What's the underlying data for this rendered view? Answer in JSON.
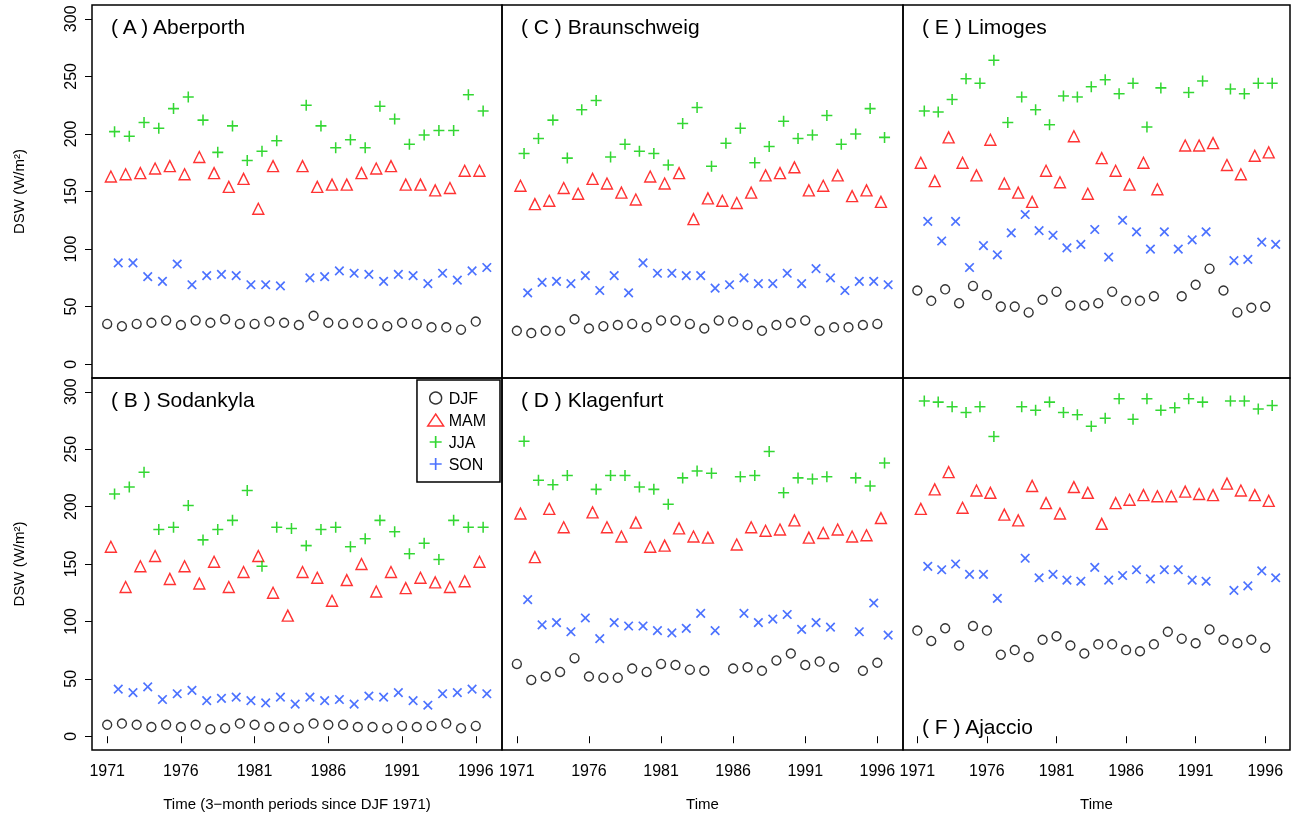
{
  "chart_data": [
    {
      "type": "scatter",
      "title": "( A ) Aberporth",
      "ylabel": "DSW (W/m²)",
      "xlim": [
        1969.97,
        1997.78
      ],
      "ylim": [
        -12,
        312
      ],
      "xticks": [
        1971,
        1976,
        1981,
        1986,
        1991,
        1996
      ],
      "yticks": [
        0,
        50,
        100,
        150,
        200,
        250,
        300
      ],
      "tick_labels": "y",
      "series": [
        {
          "color": "#000000",
          "marker": "circle",
          "x": [
            1971,
            1972,
            1973,
            1974,
            1975,
            1976,
            1977,
            1978,
            1979,
            1980,
            1981,
            1982,
            1983,
            1984,
            1985,
            1986,
            1987,
            1988,
            1989,
            1990,
            1991,
            1992,
            1993,
            1994,
            1995,
            1996
          ],
          "values": [
            35,
            33,
            35,
            36,
            38,
            34,
            38,
            36,
            39,
            35,
            35,
            37,
            36,
            34,
            42,
            36,
            35,
            36,
            35,
            33,
            36,
            35,
            32,
            32,
            30,
            37
          ]
        },
        {
          "color": "#ff0000",
          "marker": "triangle",
          "x": [
            1971.25,
            1972.25,
            1973.25,
            1974.25,
            1975.25,
            1976.25,
            1977.25,
            1978.25,
            1979.25,
            1980.25,
            1981.25,
            1982.25,
            1983.25,
            1984.25,
            1985.25,
            1986.25,
            1987.25,
            1988.25,
            1989.25,
            1990.25,
            1991.25,
            1992.25,
            1993.25,
            1994.25,
            1995.25,
            1996.25
          ],
          "values": [
            163,
            165,
            166,
            170,
            172,
            165,
            180,
            166,
            154,
            161,
            135,
            172,
            null,
            172,
            154,
            156,
            156,
            166,
            170,
            172,
            156,
            156,
            151,
            153,
            168,
            168
          ]
        },
        {
          "color": "#00cd00",
          "marker": "cross",
          "x": [
            1971.5,
            1972.5,
            1973.5,
            1974.5,
            1975.5,
            1976.5,
            1977.5,
            1978.5,
            1979.5,
            1980.5,
            1981.5,
            1982.5,
            1983.5,
            1984.5,
            1985.5,
            1986.5,
            1987.5,
            1988.5,
            1989.5,
            1990.5,
            1991.5,
            1992.5,
            1993.5,
            1994.5,
            1995.5,
            1996.5
          ],
          "values": [
            202,
            198,
            210,
            205,
            222,
            232,
            212,
            184,
            207,
            177,
            185,
            194,
            null,
            225,
            207,
            188,
            195,
            188,
            224,
            213,
            191,
            199,
            203,
            203,
            234,
            220
          ]
        },
        {
          "color": "#1f4fff",
          "x": [
            1971.75,
            1972.75,
            1973.75,
            1974.75,
            1975.75,
            1976.75,
            1977.75,
            1978.75,
            1979.75,
            1980.75,
            1981.75,
            1982.75,
            1983.75,
            1984.75,
            1985.75,
            1986.75,
            1987.75,
            1988.75,
            1989.75,
            1990.75,
            1991.75,
            1992.75,
            1993.75,
            1994.75,
            1995.75,
            1996.75
          ],
          "values": [
            88,
            88,
            76,
            72,
            87,
            69,
            77,
            78,
            77,
            69,
            69,
            68,
            null,
            75,
            76,
            81,
            79,
            78,
            72,
            78,
            77,
            70,
            79,
            73,
            81,
            84
          ]
        }
      ]
    },
    {
      "type": "scatter",
      "title": "( C ) Braunschweig",
      "xlim": [
        1969.97,
        1997.78
      ],
      "ylim": [
        -12,
        312
      ],
      "xticks": [
        1971,
        1976,
        1981,
        1986,
        1991,
        1996
      ],
      "yticks": [
        0,
        50,
        100,
        150,
        200,
        250,
        300
      ],
      "tick_labels": false,
      "series": [
        {
          "color": "#000000",
          "marker": "circle",
          "x": [
            1971,
            1972,
            1973,
            1974,
            1975,
            1976,
            1977,
            1978,
            1979,
            1980,
            1981,
            1982,
            1983,
            1984,
            1985,
            1986,
            1987,
            1988,
            1989,
            1990,
            1991,
            1992,
            1993,
            1994,
            1995,
            1996
          ],
          "values": [
            29,
            27,
            29,
            29,
            39,
            31,
            33,
            34,
            35,
            32,
            38,
            38,
            35,
            31,
            38,
            37,
            34,
            29,
            34,
            36,
            38,
            29,
            32,
            32,
            34,
            35
          ]
        },
        {
          "color": "#ff0000",
          "marker": "triangle",
          "x": [
            1971.25,
            1972.25,
            1973.25,
            1974.25,
            1975.25,
            1976.25,
            1977.25,
            1978.25,
            1979.25,
            1980.25,
            1981.25,
            1982.25,
            1983.25,
            1984.25,
            1985.25,
            1986.25,
            1987.25,
            1988.25,
            1989.25,
            1990.25,
            1991.25,
            1992.25,
            1993.25,
            1994.25,
            1995.25,
            1996.25
          ],
          "values": [
            155,
            139,
            142,
            153,
            148,
            161,
            157,
            149,
            143,
            163,
            157,
            166,
            126,
            144,
            142,
            140,
            149,
            164,
            166,
            171,
            151,
            155,
            164,
            146,
            151,
            141
          ]
        },
        {
          "color": "#00cd00",
          "marker": "cross",
          "x": [
            1971.5,
            1972.5,
            1973.5,
            1974.5,
            1975.5,
            1976.5,
            1977.5,
            1978.5,
            1979.5,
            1980.5,
            1981.5,
            1982.5,
            1983.5,
            1984.5,
            1985.5,
            1986.5,
            1987.5,
            1988.5,
            1989.5,
            1990.5,
            1991.5,
            1992.5,
            1993.5,
            1994.5,
            1995.5,
            1996.5
          ],
          "values": [
            183,
            196,
            212,
            179,
            221,
            229,
            180,
            191,
            185,
            183,
            173,
            209,
            223,
            172,
            192,
            205,
            175,
            189,
            211,
            196,
            199,
            216,
            191,
            200,
            222,
            197
          ]
        },
        {
          "color": "#1f4fff",
          "x": [
            1971.75,
            1972.75,
            1973.75,
            1974.75,
            1975.75,
            1976.75,
            1977.75,
            1978.75,
            1979.75,
            1980.75,
            1981.75,
            1982.75,
            1983.75,
            1984.75,
            1985.75,
            1986.75,
            1987.75,
            1988.75,
            1989.75,
            1990.75,
            1991.75,
            1992.75,
            1993.75,
            1994.75,
            1995.75,
            1996.75
          ],
          "values": [
            62,
            71,
            72,
            70,
            77,
            64,
            77,
            62,
            88,
            79,
            79,
            77,
            77,
            66,
            69,
            75,
            70,
            70,
            79,
            70,
            83,
            75,
            64,
            72,
            72,
            69
          ]
        }
      ]
    },
    {
      "type": "scatter",
      "title": "( E ) Limoges",
      "xlim": [
        1969.97,
        1997.78
      ],
      "ylim": [
        -12,
        312
      ],
      "xticks": [
        1971,
        1976,
        1981,
        1986,
        1991,
        1996
      ],
      "yticks": [
        0,
        50,
        100,
        150,
        200,
        250,
        300
      ],
      "tick_labels": false,
      "series": [
        {
          "color": "#000000",
          "marker": "circle",
          "x": [
            1971,
            1972,
            1973,
            1974,
            1975,
            1976,
            1977,
            1978,
            1979,
            1980,
            1981,
            1982,
            1983,
            1984,
            1985,
            1986,
            1987,
            1988,
            1989,
            1990,
            1991,
            1992,
            1993,
            1994,
            1995,
            1996
          ],
          "values": [
            64,
            55,
            65,
            53,
            68,
            60,
            50,
            50,
            45,
            56,
            63,
            51,
            51,
            53,
            63,
            55,
            55,
            59,
            null,
            59,
            69,
            83,
            64,
            45,
            49,
            50
          ]
        },
        {
          "color": "#ff0000",
          "marker": "triangle",
          "x": [
            1971.25,
            1972.25,
            1973.25,
            1974.25,
            1975.25,
            1976.25,
            1977.25,
            1978.25,
            1979.25,
            1980.25,
            1981.25,
            1982.25,
            1983.25,
            1984.25,
            1985.25,
            1986.25,
            1987.25,
            1988.25,
            1989.25,
            1990.25,
            1991.25,
            1992.25,
            1993.25,
            1994.25,
            1995.25,
            1996.25
          ],
          "values": [
            175,
            159,
            197,
            175,
            164,
            195,
            157,
            149,
            141,
            168,
            158,
            198,
            148,
            179,
            168,
            156,
            175,
            152,
            null,
            190,
            190,
            192,
            173,
            165,
            181,
            184
          ]
        },
        {
          "color": "#00cd00",
          "marker": "cross",
          "x": [
            1971.5,
            1972.5,
            1973.5,
            1974.5,
            1975.5,
            1976.5,
            1977.5,
            1978.5,
            1979.5,
            1980.5,
            1981.5,
            1982.5,
            1983.5,
            1984.5,
            1985.5,
            1986.5,
            1987.5,
            1988.5,
            1989.5,
            1990.5,
            1991.5,
            1992.5,
            1993.5,
            1994.5,
            1995.5,
            1996.5
          ],
          "values": [
            220,
            219,
            230,
            248,
            244,
            264,
            210,
            232,
            221,
            208,
            233,
            232,
            241,
            247,
            235,
            244,
            206,
            240,
            null,
            236,
            246,
            null,
            239,
            235,
            244,
            244
          ]
        },
        {
          "color": "#1f4fff",
          "x": [
            1971.75,
            1972.75,
            1973.75,
            1974.75,
            1975.75,
            1976.75,
            1977.75,
            1978.75,
            1979.75,
            1980.75,
            1981.75,
            1982.75,
            1983.75,
            1984.75,
            1985.75,
            1986.75,
            1987.75,
            1988.75,
            1989.75,
            1990.75,
            1991.75,
            1992.75,
            1993.75,
            1994.75,
            1995.75,
            1996.75
          ],
          "values": [
            124,
            107,
            124,
            84,
            103,
            95,
            114,
            130,
            116,
            112,
            101,
            104,
            117,
            93,
            125,
            115,
            100,
            115,
            100,
            108,
            115,
            null,
            90,
            91,
            106,
            104
          ]
        }
      ]
    },
    {
      "type": "scatter",
      "title": "( B ) Sodankyla",
      "xlabel": "Time (3−month periods since DJF 1971)",
      "ylabel": "DSW (W/m²)",
      "xlim": [
        1969.97,
        1997.78
      ],
      "ylim": [
        -12,
        312
      ],
      "xticks": [
        1971,
        1976,
        1981,
        1986,
        1991,
        1996
      ],
      "yticks": [
        0,
        50,
        100,
        150,
        200,
        250,
        300
      ],
      "legend": "top right",
      "series": [
        {
          "name": "DJF",
          "color": "#000000",
          "marker": "circle",
          "x": [
            1971,
            1972,
            1973,
            1974,
            1975,
            1976,
            1977,
            1978,
            1979,
            1980,
            1981,
            1982,
            1983,
            1984,
            1985,
            1986,
            1987,
            1988,
            1989,
            1990,
            1991,
            1992,
            1993,
            1994,
            1995,
            1996
          ],
          "values": [
            10,
            11,
            10,
            8,
            10,
            8,
            10,
            6,
            7,
            11,
            10,
            8,
            8,
            7,
            11,
            10,
            10,
            8,
            8,
            7,
            9,
            8,
            9,
            11,
            7,
            9
          ]
        },
        {
          "name": "MAM",
          "color": "#ff0000",
          "marker": "triangle",
          "x": [
            1971.25,
            1972.25,
            1973.25,
            1974.25,
            1975.25,
            1976.25,
            1977.25,
            1978.25,
            1979.25,
            1980.25,
            1981.25,
            1982.25,
            1983.25,
            1984.25,
            1985.25,
            1986.25,
            1987.25,
            1988.25,
            1989.25,
            1990.25,
            1991.25,
            1992.25,
            1993.25,
            1994.25,
            1995.25,
            1996.25
          ],
          "values": [
            165,
            130,
            148,
            157,
            137,
            148,
            133,
            152,
            130,
            143,
            157,
            125,
            105,
            143,
            138,
            118,
            136,
            150,
            126,
            143,
            129,
            138,
            134,
            130,
            135,
            152
          ]
        },
        {
          "name": "JJA",
          "color": "#00cd00",
          "marker": "cross",
          "x": [
            1971.5,
            1972.5,
            1973.5,
            1974.5,
            1975.5,
            1976.5,
            1977.5,
            1978.5,
            1979.5,
            1980.5,
            1981.5,
            1982.5,
            1983.5,
            1984.5,
            1985.5,
            1986.5,
            1987.5,
            1988.5,
            1989.5,
            1990.5,
            1991.5,
            1992.5,
            1993.5,
            1994.5,
            1995.5,
            1996.5
          ],
          "values": [
            211,
            217,
            230,
            180,
            182,
            201,
            171,
            180,
            188,
            214,
            148,
            182,
            181,
            166,
            180,
            182,
            165,
            172,
            188,
            178,
            159,
            168,
            154,
            188,
            182,
            182
          ]
        },
        {
          "name": "SON",
          "color": "#1f4fff",
          "x": [
            1971.75,
            1972.75,
            1973.75,
            1974.75,
            1975.75,
            1976.75,
            1977.75,
            1978.75,
            1979.75,
            1980.75,
            1981.75,
            1982.75,
            1983.75,
            1984.75,
            1985.75,
            1986.75,
            1987.75,
            1988.75,
            1989.75,
            1990.75,
            1991.75,
            1992.75,
            1993.75,
            1994.75,
            1995.75,
            1996.75
          ],
          "values": [
            41,
            38,
            43,
            32,
            37,
            40,
            31,
            33,
            34,
            31,
            29,
            34,
            28,
            34,
            31,
            32,
            28,
            35,
            34,
            38,
            31,
            27,
            37,
            38,
            41,
            37
          ]
        }
      ]
    },
    {
      "type": "scatter",
      "title": "( D ) Klagenfurt",
      "xlabel": "Time",
      "xlim": [
        1969.97,
        1997.78
      ],
      "ylim": [
        -12,
        312
      ],
      "xticks": [
        1971,
        1976,
        1981,
        1986,
        1991,
        1996
      ],
      "yticks": [
        0,
        50,
        100,
        150,
        200,
        250,
        300
      ],
      "tick_labels": "x",
      "series": [
        {
          "color": "#000000",
          "marker": "circle",
          "x": [
            1971,
            1972,
            1973,
            1974,
            1975,
            1976,
            1977,
            1978,
            1979,
            1980,
            1981,
            1982,
            1983,
            1984,
            1985,
            1986,
            1987,
            1988,
            1989,
            1990,
            1991,
            1992,
            1993,
            1994,
            1995,
            1996
          ],
          "values": [
            63,
            49,
            52,
            56,
            68,
            52,
            51,
            51,
            59,
            56,
            63,
            62,
            58,
            57,
            null,
            59,
            60,
            57,
            66,
            72,
            62,
            65,
            60,
            null,
            57,
            64
          ]
        },
        {
          "color": "#ff0000",
          "marker": "triangle",
          "x": [
            1971.25,
            1972.25,
            1973.25,
            1974.25,
            1975.25,
            1976.25,
            1977.25,
            1978.25,
            1979.25,
            1980.25,
            1981.25,
            1982.25,
            1983.25,
            1984.25,
            1985.25,
            1986.25,
            1987.25,
            1988.25,
            1989.25,
            1990.25,
            1991.25,
            1992.25,
            1993.25,
            1994.25,
            1995.25,
            1996.25
          ],
          "values": [
            194,
            156,
            198,
            182,
            null,
            195,
            182,
            174,
            186,
            165,
            166,
            181,
            174,
            173,
            null,
            167,
            182,
            179,
            180,
            188,
            173,
            177,
            180,
            174,
            175,
            190
          ]
        },
        {
          "color": "#00cd00",
          "marker": "cross",
          "x": [
            1971.5,
            1972.5,
            1973.5,
            1974.5,
            1975.5,
            1976.5,
            1977.5,
            1978.5,
            1979.5,
            1980.5,
            1981.5,
            1982.5,
            1983.5,
            1984.5,
            1985.5,
            1986.5,
            1987.5,
            1988.5,
            1989.5,
            1990.5,
            1991.5,
            1992.5,
            1993.5,
            1994.5,
            1995.5,
            1996.5
          ],
          "values": [
            257,
            223,
            219,
            227,
            null,
            215,
            227,
            227,
            217,
            215,
            202,
            225,
            231,
            229,
            null,
            226,
            227,
            248,
            212,
            225,
            224,
            226,
            null,
            225,
            218,
            238
          ]
        },
        {
          "color": "#1f4fff",
          "x": [
            1971.75,
            1972.75,
            1973.75,
            1974.75,
            1975.75,
            1976.75,
            1977.75,
            1978.75,
            1979.75,
            1980.75,
            1981.75,
            1982.75,
            1983.75,
            1984.75,
            1985.75,
            1986.75,
            1987.75,
            1988.75,
            1989.75,
            1990.75,
            1991.75,
            1992.75,
            1993.75,
            1994.75,
            1995.75,
            1996.75
          ],
          "values": [
            119,
            97,
            99,
            91,
            103,
            85,
            99,
            96,
            96,
            92,
            90,
            94,
            107,
            92,
            null,
            107,
            99,
            102,
            106,
            93,
            99,
            95,
            null,
            91,
            116,
            88
          ]
        }
      ]
    },
    {
      "type": "scatter",
      "title": "( F ) Ajaccio",
      "xlabel": "Time",
      "xlim": [
        1969.97,
        1997.78
      ],
      "ylim": [
        -12,
        312
      ],
      "xticks": [
        1971,
        1976,
        1981,
        1986,
        1991,
        1996
      ],
      "yticks": [
        0,
        50,
        100,
        150,
        200,
        250,
        300
      ],
      "tick_labels": "x",
      "series": [
        {
          "color": "#000000",
          "marker": "circle",
          "x": [
            1971,
            1972,
            1973,
            1974,
            1975,
            1976,
            1977,
            1978,
            1979,
            1980,
            1981,
            1982,
            1983,
            1984,
            1985,
            1986,
            1987,
            1988,
            1989,
            1990,
            1991,
            1992,
            1993,
            1994,
            1995,
            1996
          ],
          "values": [
            92,
            83,
            94,
            79,
            96,
            92,
            71,
            75,
            69,
            84,
            87,
            79,
            72,
            80,
            80,
            75,
            74,
            80,
            91,
            85,
            81,
            93,
            84,
            81,
            84,
            77
          ]
        },
        {
          "color": "#ff0000",
          "marker": "triangle",
          "x": [
            1971.25,
            1972.25,
            1973.25,
            1974.25,
            1975.25,
            1976.25,
            1977.25,
            1978.25,
            1979.25,
            1980.25,
            1981.25,
            1982.25,
            1983.25,
            1984.25,
            1985.25,
            1986.25,
            1987.25,
            1988.25,
            1989.25,
            1990.25,
            1991.25,
            1992.25,
            1993.25,
            1994.25,
            1995.25,
            1996.25
          ],
          "values": [
            198,
            215,
            230,
            199,
            214,
            212,
            193,
            188,
            218,
            203,
            194,
            217,
            212,
            185,
            203,
            206,
            210,
            209,
            209,
            213,
            211,
            210,
            220,
            214,
            210,
            205
          ]
        },
        {
          "color": "#00cd00",
          "marker": "cross",
          "x": [
            1971.5,
            1972.5,
            1973.5,
            1974.5,
            1975.5,
            1976.5,
            1977.5,
            1978.5,
            1979.5,
            1980.5,
            1981.5,
            1982.5,
            1983.5,
            1984.5,
            1985.5,
            1986.5,
            1987.5,
            1988.5,
            1989.5,
            1990.5,
            1991.5,
            1992.5,
            1993.5,
            1994.5,
            1995.5,
            1996.5
          ],
          "values": [
            292,
            291,
            287,
            282,
            287,
            261,
            null,
            287,
            284,
            291,
            282,
            280,
            270,
            277,
            294,
            276,
            294,
            284,
            286,
            294,
            291,
            null,
            292,
            292,
            285,
            288
          ]
        },
        {
          "color": "#1f4fff",
          "x": [
            1971.75,
            1972.75,
            1973.75,
            1974.75,
            1975.75,
            1976.75,
            1977.75,
            1978.75,
            1979.75,
            1980.75,
            1981.75,
            1982.75,
            1983.75,
            1984.75,
            1985.75,
            1986.75,
            1987.75,
            1988.75,
            1989.75,
            1990.75,
            1991.75,
            1992.75,
            1993.75,
            1994.75,
            1995.75,
            1996.75
          ],
          "values": [
            148,
            145,
            150,
            141,
            141,
            120,
            null,
            155,
            138,
            141,
            136,
            135,
            147,
            136,
            140,
            145,
            137,
            145,
            145,
            136,
            135,
            null,
            127,
            131,
            144,
            138
          ]
        }
      ]
    }
  ]
}
